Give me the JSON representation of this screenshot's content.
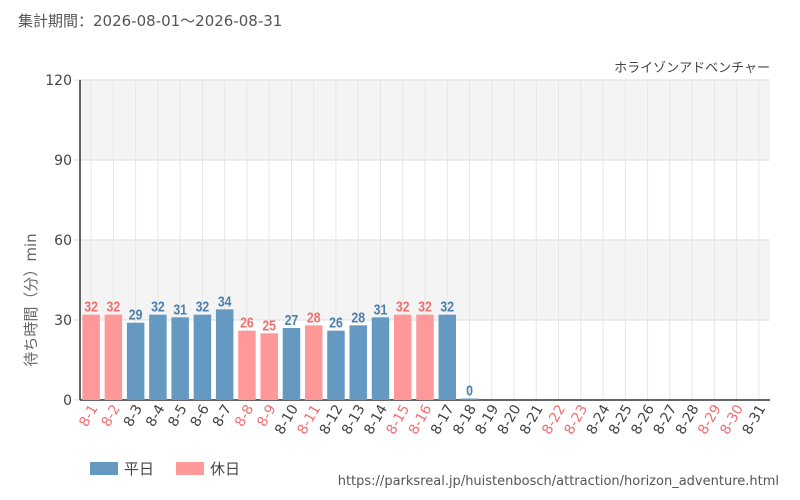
{
  "period_label": "集計期間：2026-08-01～2026-08-31",
  "source_url": "https://parksreal.jp/huistenbosch/attraction/horizon_adventure.html",
  "colors": {
    "weekday": "#6699c2",
    "holiday": "#ff9999",
    "weekday_label": "#4d7fab",
    "holiday_label": "#f07070",
    "band": "#f4f4f4",
    "grid": "#dcdcdc"
  },
  "legend": [
    {
      "label": "平日",
      "key": "weekday"
    },
    {
      "label": "休日",
      "key": "holiday"
    }
  ],
  "chart_data": {
    "type": "bar",
    "title": "ホライゾンアドベンチャー",
    "ylabel": "待ち時間（分）min",
    "ylim": [
      0,
      120
    ],
    "yticks": [
      0,
      30,
      60,
      90,
      120
    ],
    "grid": true,
    "legend_position": "bottom-left",
    "categories": [
      "8-1",
      "8-2",
      "8-3",
      "8-4",
      "8-5",
      "8-6",
      "8-7",
      "8-8",
      "8-9",
      "8-10",
      "8-11",
      "8-12",
      "8-13",
      "8-14",
      "8-15",
      "8-16",
      "8-17",
      "8-18",
      "8-19",
      "8-20",
      "8-21",
      "8-22",
      "8-23",
      "8-24",
      "8-25",
      "8-26",
      "8-27",
      "8-28",
      "8-29",
      "8-30",
      "8-31"
    ],
    "day_type": [
      "holiday",
      "holiday",
      "weekday",
      "weekday",
      "weekday",
      "weekday",
      "weekday",
      "holiday",
      "holiday",
      "weekday",
      "holiday",
      "weekday",
      "weekday",
      "weekday",
      "holiday",
      "holiday",
      "weekday",
      "weekday",
      "weekday",
      "weekday",
      "weekday",
      "holiday",
      "holiday",
      "weekday",
      "weekday",
      "weekday",
      "weekday",
      "weekday",
      "holiday",
      "holiday",
      "weekday"
    ],
    "values": [
      32,
      32,
      29,
      32,
      31,
      32,
      34,
      26,
      25,
      27,
      28,
      26,
      28,
      31,
      32,
      32,
      32,
      0,
      null,
      null,
      null,
      null,
      null,
      null,
      null,
      null,
      null,
      null,
      null,
      null,
      null
    ]
  }
}
